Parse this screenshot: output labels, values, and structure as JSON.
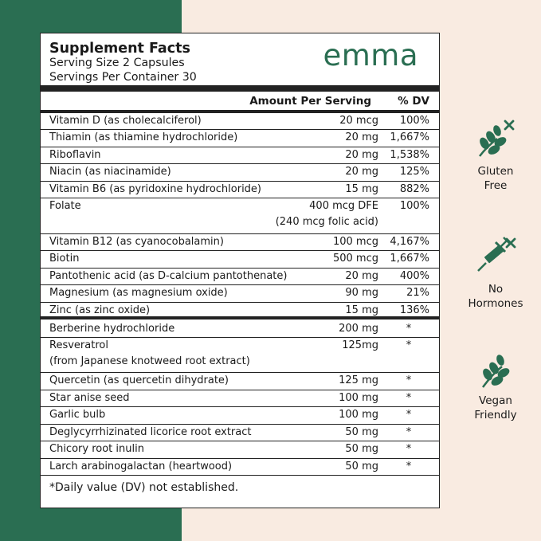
{
  "header": {
    "title": "Supplement Facts",
    "serving_size": "Serving Size 2 Capsules",
    "servings_per_container": "Servings Per Container 30",
    "brand": "emma"
  },
  "columns": {
    "amount": "Amount Per Serving",
    "dv": "% DV"
  },
  "vitamins": [
    {
      "name": "Vitamin D (as cholecalciferol)",
      "amount": "20 mcg",
      "dv": "100%"
    },
    {
      "name": "Thiamin (as thiamine hydrochloride)",
      "amount": "20 mg",
      "dv": "1,667%"
    },
    {
      "name": "Riboflavin",
      "amount": "20 mg",
      "dv": "1,538%"
    },
    {
      "name": "Niacin (as niacinamide)",
      "amount": "20 mg",
      "dv": "125%"
    },
    {
      "name": "Vitamin B6 (as pyridoxine hydrochloride)",
      "amount": "15 mg",
      "dv": "882%"
    },
    {
      "name": "Folate",
      "amount": "400 mcg DFE",
      "amount2": "(240 mcg folic acid)",
      "dv": "100%"
    },
    {
      "name": "Vitamin B12 (as cyanocobalamin)",
      "amount": "100 mcg",
      "dv": "4,167%"
    },
    {
      "name": "Biotin",
      "amount": "500 mcg",
      "dv": "1,667%"
    },
    {
      "name": "Pantothenic acid (as D-calcium pantothenate)",
      "amount": "20 mg",
      "dv": "400%"
    },
    {
      "name": "Magnesium (as magnesium oxide)",
      "amount": "90 mg",
      "dv": "21%"
    },
    {
      "name": "Zinc (as zinc oxide)",
      "amount": "15 mg",
      "dv": "136%"
    }
  ],
  "others": [
    {
      "name": "Berberine hydrochloride",
      "amount": "200 mg",
      "dv": "*"
    },
    {
      "name": "Resveratrol",
      "name2": "(from Japanese knotweed root extract)",
      "amount": "125mg",
      "dv": "*"
    },
    {
      "name": "Quercetin (as quercetin dihydrate)",
      "amount": "125 mg",
      "dv": "*"
    },
    {
      "name": "Star anise seed",
      "amount": "100 mg",
      "dv": "*"
    },
    {
      "name": "Garlic bulb",
      "amount": "100 mg",
      "dv": "*"
    },
    {
      "name": "Deglycyrrhizinated licorice root extract",
      "amount": "50 mg",
      "dv": "*"
    },
    {
      "name": "Chicory root inulin",
      "amount": "50 mg",
      "dv": "*"
    },
    {
      "name": "Larch arabinogalactan (heartwood)",
      "amount": "50 mg",
      "dv": "*"
    }
  ],
  "footnote": "*Daily value (DV) not established.",
  "badges": [
    {
      "line1": "Gluten",
      "line2": "Free",
      "icon": "leaf-crossed-icon"
    },
    {
      "line1": "No",
      "line2": "Hormones",
      "icon": "syringe-crossed-icon"
    },
    {
      "line1": "Vegan",
      "line2": "Friendly",
      "icon": "leaf-icon"
    }
  ],
  "colors": {
    "green": "#2a6e52",
    "peach": "#f9ebe1"
  }
}
